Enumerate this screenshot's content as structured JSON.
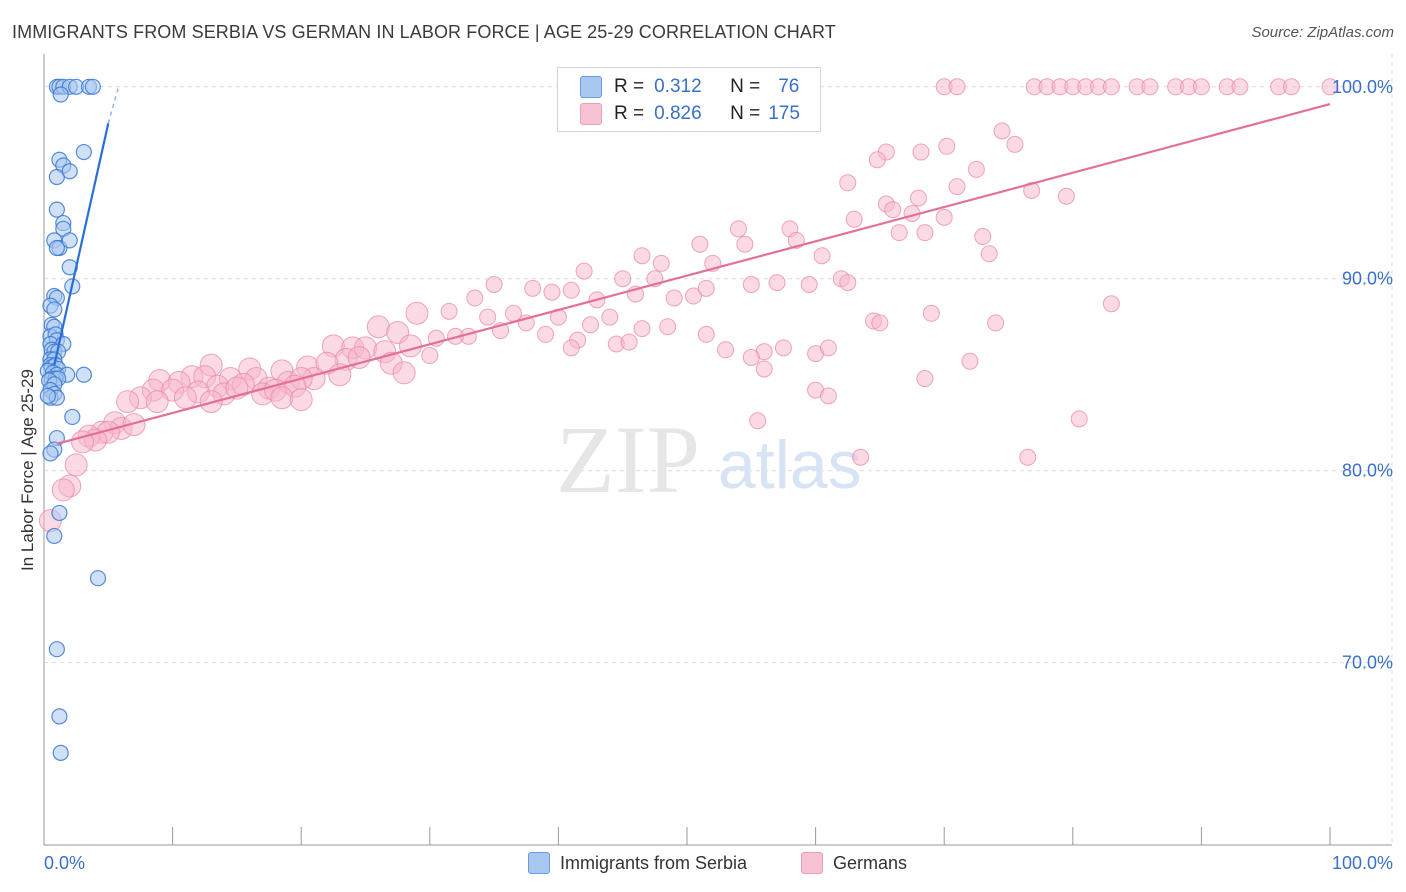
{
  "header": {
    "title": "IMMIGRANTS FROM SERBIA VS GERMAN IN LABOR FORCE | AGE 25-29 CORRELATION CHART",
    "source": "Source: ZipAtlas.com"
  },
  "watermark": {
    "zip": "ZIP",
    "atlas": "atlas"
  },
  "legend": {
    "r_label": "R =",
    "n_label": "N =",
    "rows": [
      {
        "r": "0.312",
        "n": "76"
      },
      {
        "r": "0.826",
        "n": "175"
      }
    ]
  },
  "colors": {
    "serbia_fill": "#a9c8f0",
    "serbia_stroke": "#3a78d4",
    "serbia_line": "#2a6fd6",
    "german_fill": "#f7b6cb",
    "german_stroke": "#e889a8",
    "german_line": "#e2709a",
    "axis_value": "#3a70c9",
    "grid": "#dddddd"
  },
  "chart_data": {
    "type": "scatter",
    "title": "IMMIGRANTS FROM SERBIA VS GERMAN IN LABOR FORCE | AGE 25-29 CORRELATION CHART",
    "xlabel": "",
    "ylabel": "In Labor Force | Age 25-29",
    "xlim": [
      0,
      100
    ],
    "ylim": [
      60.5,
      101.5
    ],
    "x_tick_labels": [
      "0.0%",
      "100.0%"
    ],
    "y_ticks": [
      70,
      80,
      90,
      100
    ],
    "y_tick_labels": [
      "70.0%",
      "80.0%",
      "90.0%",
      "100.0%"
    ],
    "grid": true,
    "legend_position": "top-center",
    "series": [
      {
        "name": "Immigrants from Serbia",
        "r": 0.312,
        "n": 76,
        "trend": {
          "x1": 0.8,
          "y1": 85.5,
          "x2": 5.0,
          "y2": 98.1,
          "dash_x2": 5.8,
          "dash_y2": 100.0
        },
        "points": [
          [
            1.0,
            100
          ],
          [
            1.2,
            100
          ],
          [
            1.5,
            100
          ],
          [
            2.0,
            100
          ],
          [
            2.5,
            100
          ],
          [
            3.5,
            100
          ],
          [
            3.8,
            100
          ],
          [
            1.3,
            99.6
          ],
          [
            3.1,
            96.6
          ],
          [
            1.2,
            96.2
          ],
          [
            1.5,
            95.9
          ],
          [
            1.0,
            95.3
          ],
          [
            2.0,
            95.6
          ],
          [
            1.0,
            93.6
          ],
          [
            1.5,
            92.9
          ],
          [
            1.5,
            92.6
          ],
          [
            0.8,
            92.0
          ],
          [
            1.2,
            91.6
          ],
          [
            1.0,
            91.6
          ],
          [
            2.0,
            92.0
          ],
          [
            2.0,
            90.6
          ],
          [
            2.2,
            89.6
          ],
          [
            0.8,
            89.1
          ],
          [
            1.0,
            89.0
          ],
          [
            0.5,
            88.6
          ],
          [
            0.8,
            88.4
          ],
          [
            0.6,
            87.6
          ],
          [
            0.8,
            87.5
          ],
          [
            0.5,
            87.0
          ],
          [
            0.9,
            87.1
          ],
          [
            1.0,
            86.8
          ],
          [
            0.5,
            86.6
          ],
          [
            1.5,
            86.6
          ],
          [
            0.6,
            86.3
          ],
          [
            0.8,
            86.2
          ],
          [
            1.1,
            86.2
          ],
          [
            0.5,
            85.8
          ],
          [
            0.8,
            85.8
          ],
          [
            0.5,
            85.5
          ],
          [
            0.6,
            85.4
          ],
          [
            0.9,
            85.5
          ],
          [
            1.1,
            85.3
          ],
          [
            0.3,
            85.2
          ],
          [
            0.7,
            85.1
          ],
          [
            1.0,
            85.0
          ],
          [
            1.8,
            85.0
          ],
          [
            3.1,
            85.0
          ],
          [
            0.6,
            84.8
          ],
          [
            0.9,
            84.8
          ],
          [
            1.1,
            84.8
          ],
          [
            0.4,
            84.7
          ],
          [
            0.8,
            84.5
          ],
          [
            0.5,
            84.2
          ],
          [
            0.8,
            84.0
          ],
          [
            0.5,
            83.8
          ],
          [
            1.0,
            83.8
          ],
          [
            0.3,
            83.9
          ],
          [
            2.2,
            82.8
          ],
          [
            1.0,
            81.7
          ],
          [
            0.8,
            81.1
          ],
          [
            0.5,
            80.9
          ],
          [
            1.2,
            77.8
          ],
          [
            0.8,
            76.6
          ],
          [
            4.2,
            74.4
          ],
          [
            1.0,
            70.7
          ],
          [
            1.2,
            67.2
          ],
          [
            1.3,
            65.3
          ]
        ]
      },
      {
        "name": "Germans",
        "r": 0.826,
        "n": 175,
        "trend": {
          "x1": 1.0,
          "y1": 81.4,
          "x2": 100.0,
          "y2": 99.1
        },
        "points": [
          [
            70,
            100
          ],
          [
            71,
            100
          ],
          [
            77,
            100
          ],
          [
            78,
            100
          ],
          [
            79,
            100
          ],
          [
            80,
            100
          ],
          [
            81,
            100
          ],
          [
            82,
            100
          ],
          [
            83,
            100
          ],
          [
            85,
            100
          ],
          [
            86,
            100
          ],
          [
            88,
            100
          ],
          [
            89,
            100
          ],
          [
            90,
            100
          ],
          [
            92,
            100
          ],
          [
            93,
            100
          ],
          [
            96,
            100
          ],
          [
            97,
            100
          ],
          [
            100,
            100
          ],
          [
            74.5,
            97.7
          ],
          [
            75.5,
            97.0
          ],
          [
            70.2,
            96.9
          ],
          [
            68.2,
            96.6
          ],
          [
            65.5,
            96.6
          ],
          [
            64.8,
            96.2
          ],
          [
            72.5,
            95.7
          ],
          [
            76.8,
            94.6
          ],
          [
            71.0,
            94.8
          ],
          [
            65.5,
            93.9
          ],
          [
            62.5,
            95.0
          ],
          [
            68.0,
            94.2
          ],
          [
            66.0,
            93.6
          ],
          [
            67.5,
            93.4
          ],
          [
            70.0,
            93.2
          ],
          [
            79.5,
            94.3
          ],
          [
            63.0,
            93.1
          ],
          [
            68.5,
            92.4
          ],
          [
            54.0,
            92.6
          ],
          [
            58.0,
            92.6
          ],
          [
            58.5,
            92.0
          ],
          [
            60.5,
            91.2
          ],
          [
            54.5,
            91.8
          ],
          [
            51.0,
            91.8
          ],
          [
            73.5,
            91.3
          ],
          [
            46.5,
            91.2
          ],
          [
            48.0,
            90.8
          ],
          [
            52.0,
            90.8
          ],
          [
            66.5,
            92.4
          ],
          [
            73.0,
            92.2
          ],
          [
            42.0,
            90.4
          ],
          [
            45.0,
            90.0
          ],
          [
            47.5,
            90.0
          ],
          [
            55.0,
            89.7
          ],
          [
            57.0,
            89.8
          ],
          [
            59.5,
            89.7
          ],
          [
            62.0,
            90.0
          ],
          [
            62.5,
            89.8
          ],
          [
            35.0,
            89.7
          ],
          [
            38.0,
            89.5
          ],
          [
            39.5,
            89.3
          ],
          [
            41.0,
            89.4
          ],
          [
            43.0,
            88.9
          ],
          [
            46.0,
            89.2
          ],
          [
            49.0,
            89.0
          ],
          [
            50.5,
            89.1
          ],
          [
            51.5,
            89.5
          ],
          [
            33.5,
            89.0
          ],
          [
            29.0,
            88.2
          ],
          [
            31.5,
            88.3
          ],
          [
            34.5,
            88.0
          ],
          [
            36.5,
            88.2
          ],
          [
            37.5,
            87.7
          ],
          [
            40.0,
            88.0
          ],
          [
            42.5,
            87.6
          ],
          [
            44.0,
            88.0
          ],
          [
            46.5,
            87.4
          ],
          [
            48.5,
            87.5
          ],
          [
            53.0,
            86.3
          ],
          [
            56.0,
            86.2
          ],
          [
            60.0,
            86.1
          ],
          [
            61.0,
            86.4
          ],
          [
            64.5,
            87.8
          ],
          [
            65.0,
            87.7
          ],
          [
            69.0,
            88.2
          ],
          [
            74.0,
            87.7
          ],
          [
            83.0,
            88.7
          ],
          [
            26.0,
            87.5
          ],
          [
            27.5,
            87.2
          ],
          [
            30.5,
            86.9
          ],
          [
            32.0,
            87.0
          ],
          [
            33.0,
            87.0
          ],
          [
            35.5,
            87.3
          ],
          [
            39.0,
            87.1
          ],
          [
            41.5,
            86.8
          ],
          [
            44.5,
            86.6
          ],
          [
            45.5,
            86.7
          ],
          [
            22.5,
            86.5
          ],
          [
            24.0,
            86.4
          ],
          [
            25.0,
            86.4
          ],
          [
            26.5,
            86.2
          ],
          [
            28.5,
            86.5
          ],
          [
            30.0,
            86.0
          ],
          [
            23.5,
            85.8
          ],
          [
            20.5,
            85.4
          ],
          [
            22.0,
            85.6
          ],
          [
            24.5,
            85.9
          ],
          [
            27.0,
            85.6
          ],
          [
            41.0,
            86.4
          ],
          [
            51.5,
            87.1
          ],
          [
            57.5,
            86.4
          ],
          [
            55.0,
            85.9
          ],
          [
            72.0,
            85.7
          ],
          [
            13.0,
            85.5
          ],
          [
            16.0,
            85.3
          ],
          [
            18.5,
            85.2
          ],
          [
            21.0,
            84.8
          ],
          [
            23.0,
            85.0
          ],
          [
            11.5,
            84.9
          ],
          [
            12.5,
            84.9
          ],
          [
            14.5,
            84.8
          ],
          [
            16.5,
            84.8
          ],
          [
            19.0,
            84.6
          ],
          [
            20.0,
            84.8
          ],
          [
            28.0,
            85.1
          ],
          [
            9.0,
            84.7
          ],
          [
            10.5,
            84.6
          ],
          [
            13.5,
            84.4
          ],
          [
            15.5,
            84.5
          ],
          [
            17.5,
            84.3
          ],
          [
            19.5,
            84.4
          ],
          [
            8.5,
            84.2
          ],
          [
            10.0,
            84.2
          ],
          [
            12.0,
            84.1
          ],
          [
            14.0,
            84.0
          ],
          [
            15.0,
            84.3
          ],
          [
            17.0,
            84.0
          ],
          [
            18.0,
            84.2
          ],
          [
            7.5,
            83.8
          ],
          [
            8.8,
            83.6
          ],
          [
            11.0,
            83.8
          ],
          [
            13.0,
            83.6
          ],
          [
            6.5,
            83.6
          ],
          [
            18.5,
            83.8
          ],
          [
            20.0,
            83.7
          ],
          [
            5.5,
            82.5
          ],
          [
            6.0,
            82.2
          ],
          [
            7.0,
            82.4
          ],
          [
            4.5,
            82.0
          ],
          [
            5.0,
            82.0
          ],
          [
            3.5,
            81.8
          ],
          [
            4.0,
            81.6
          ],
          [
            3.0,
            81.5
          ],
          [
            2.5,
            80.3
          ],
          [
            2.0,
            79.2
          ],
          [
            1.5,
            79.0
          ],
          [
            0.5,
            77.4
          ],
          [
            56.0,
            85.3
          ],
          [
            60.0,
            84.2
          ],
          [
            61.0,
            83.9
          ],
          [
            55.5,
            82.6
          ],
          [
            63.5,
            80.7
          ],
          [
            76.5,
            80.7
          ],
          [
            80.5,
            82.7
          ],
          [
            68.5,
            84.8
          ]
        ]
      }
    ]
  },
  "bottom_legend": {
    "items": [
      "Immigrants from Serbia",
      "Germans"
    ]
  }
}
